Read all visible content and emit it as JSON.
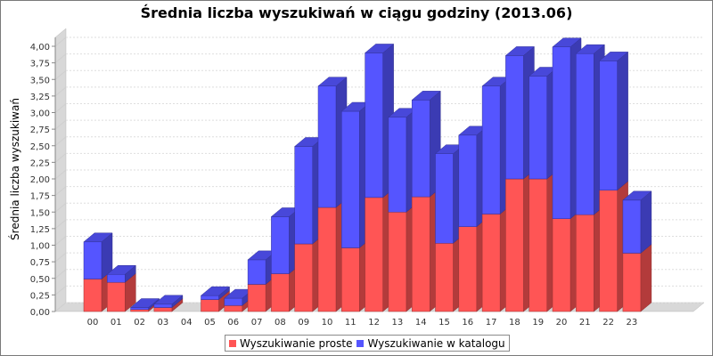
{
  "chart_data": {
    "type": "bar",
    "stacked": true,
    "three_d": true,
    "title": "Średnia liczba wyszukiwań w ciągu godziny (2013.06)",
    "xlabel": "",
    "ylabel": "Średnia liczba wyszukiwań",
    "ylim": [
      0,
      4.2
    ],
    "yticks": [
      "0,00",
      "0,25",
      "0,50",
      "0,75",
      "1,00",
      "1,25",
      "1,50",
      "1,75",
      "2,00",
      "2,25",
      "2,50",
      "2,75",
      "3,00",
      "3,25",
      "3,50",
      "3,75",
      "4,00"
    ],
    "categories": [
      "00",
      "01",
      "02",
      "03",
      "04",
      "05",
      "06",
      "07",
      "08",
      "09",
      "10",
      "11",
      "12",
      "13",
      "14",
      "15",
      "16",
      "17",
      "18",
      "19",
      "20",
      "21",
      "22",
      "23"
    ],
    "series": [
      {
        "name": "Wyszukiwanie proste",
        "color": "#ff5555",
        "values": [
          0.49,
          0.44,
          0.03,
          0.06,
          0,
          0.18,
          0.09,
          0.41,
          0.57,
          1.02,
          1.57,
          0.96,
          1.72,
          1.5,
          1.73,
          1.03,
          1.28,
          1.47,
          2.0,
          2.0,
          1.4,
          1.46,
          1.83,
          0.88
        ]
      },
      {
        "name": "Wyszukiwanie w katalogu",
        "color": "#5555ff",
        "values": [
          0.56,
          0.12,
          0.03,
          0.05,
          0,
          0.06,
          0.11,
          0.37,
          0.86,
          1.47,
          1.83,
          2.06,
          2.18,
          1.43,
          1.46,
          1.35,
          1.38,
          1.93,
          1.86,
          1.55,
          2.59,
          2.43,
          1.95,
          0.8
        ]
      }
    ],
    "grid": true,
    "legend_position": "bottom"
  }
}
